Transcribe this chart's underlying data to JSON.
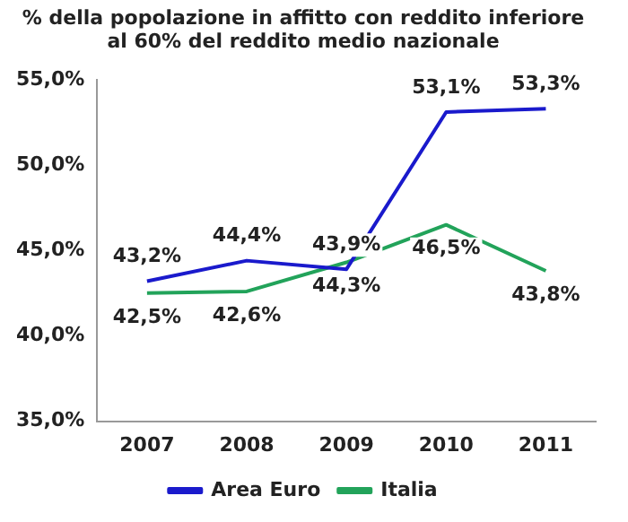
{
  "chart_data": {
    "type": "line",
    "title": "% della popolazione in affitto con reddito inferiore al 60% del reddito medio nazionale",
    "categories": [
      "2007",
      "2008",
      "2009",
      "2010",
      "2011"
    ],
    "series": [
      {
        "name": "Area Euro",
        "color": "#1a1acc",
        "values": [
          43.2,
          44.4,
          43.9,
          53.1,
          53.3
        ],
        "value_labels": [
          "43,2%",
          "44,4%",
          "43,9%",
          "53,1%",
          "53,3%"
        ]
      },
      {
        "name": "Italia",
        "color": "#22a35a",
        "values": [
          42.5,
          42.6,
          44.3,
          46.5,
          43.8
        ],
        "value_labels": [
          "42,5%",
          "42,6%",
          "44,3%",
          "46,5%",
          "43,8%"
        ]
      }
    ],
    "ylim": [
      35,
      55
    ],
    "yticks": [
      {
        "value": 35,
        "label": "35,0%"
      },
      {
        "value": 40,
        "label": "40,0%"
      },
      {
        "value": 45,
        "label": "45,0%"
      },
      {
        "value": 50,
        "label": "50,0%"
      },
      {
        "value": 55,
        "label": "55,0%"
      }
    ],
    "grid": false,
    "legend": "bottom",
    "marker": "none",
    "line_style": "solid"
  }
}
